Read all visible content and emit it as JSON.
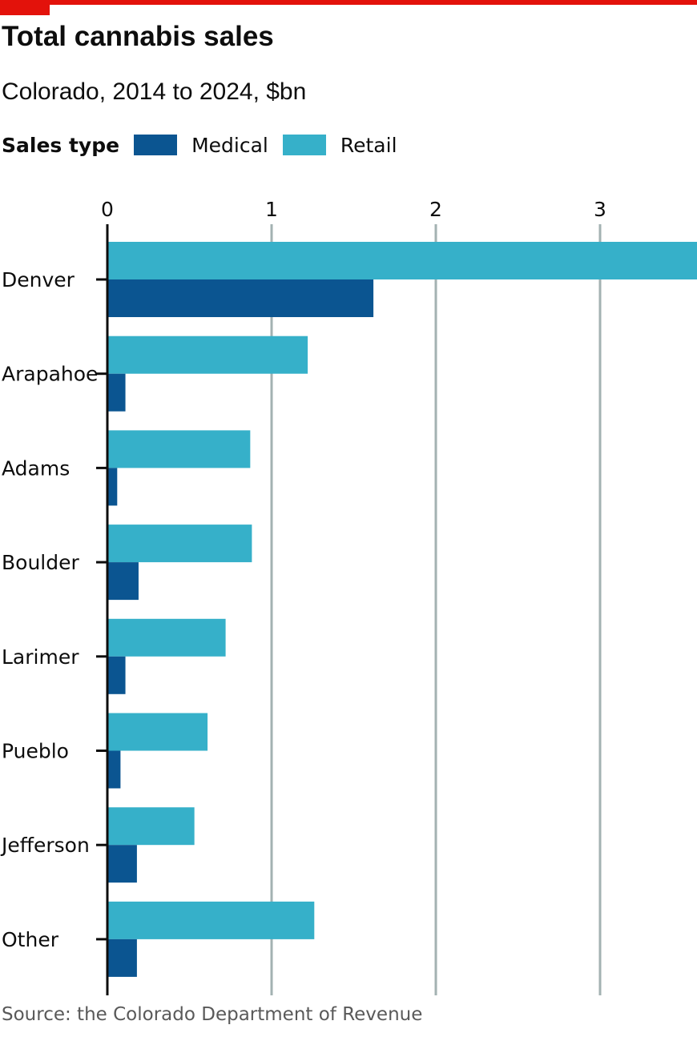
{
  "header": {
    "title": "Total cannabis sales",
    "subtitle": "Colorado, 2014 to 2024, $bn"
  },
  "legend": {
    "title": "Sales type",
    "items": [
      {
        "label": "Medical",
        "color": "#0b5591"
      },
      {
        "label": "Retail",
        "color": "#36b0c9"
      }
    ]
  },
  "footer": {
    "source": "Source: the Colorado Department of Revenue"
  },
  "chart_data": {
    "type": "bar",
    "orientation": "horizontal",
    "title": "Total cannabis sales",
    "subtitle": "Colorado, 2014 to 2024, $bn",
    "xlim": [
      0,
      3.6
    ],
    "x_ticks": [
      0,
      1,
      2,
      3
    ],
    "grid": true,
    "legend_position": "top-left",
    "categories": [
      "Denver",
      "Arapahoe",
      "Adams",
      "Boulder",
      "Larimer",
      "Pueblo",
      "Jefferson",
      "Other"
    ],
    "series": [
      {
        "name": "Retail",
        "color": "#36b0c9",
        "values": [
          3.6,
          1.22,
          0.87,
          0.88,
          0.72,
          0.61,
          0.53,
          1.26
        ]
      },
      {
        "name": "Medical",
        "color": "#0b5591",
        "values": [
          1.62,
          0.11,
          0.06,
          0.19,
          0.11,
          0.08,
          0.18,
          0.18
        ]
      }
    ]
  }
}
